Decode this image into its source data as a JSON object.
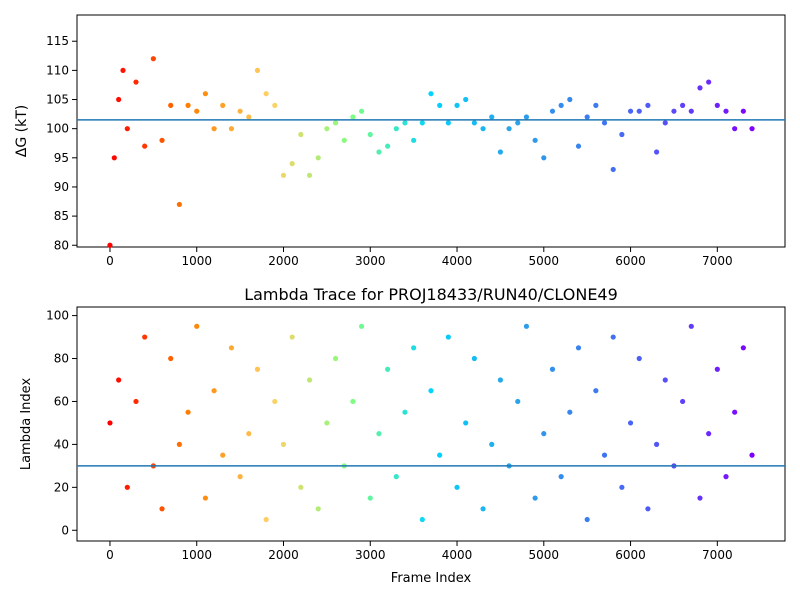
{
  "chart_data": [
    {
      "type": "scatter",
      "title": "",
      "xlabel": "",
      "ylabel": "ΔG (kT)",
      "xlim": [
        -380,
        7780
      ],
      "ylim": [
        79.7,
        119.5
      ],
      "x_ticks": [
        0,
        1000,
        2000,
        3000,
        4000,
        5000,
        6000,
        7000
      ],
      "y_ticks": [
        80,
        85,
        90,
        95,
        100,
        105,
        110,
        115
      ],
      "x_tick_labels": [
        "0",
        "1000",
        "2000",
        "3000",
        "4000",
        "5000",
        "6000",
        "7000"
      ],
      "y_tick_labels": [
        "80",
        "85",
        "90",
        "95",
        "100",
        "105",
        "110",
        "115"
      ],
      "hline": 101.5,
      "colormap": "rainbow",
      "color_note": "point color varies along frame index (red early, violet late)",
      "series": [
        {
          "x": [
            0,
            50,
            100,
            150,
            200,
            300,
            400,
            500,
            600,
            700,
            800,
            900,
            1000,
            1100,
            1200,
            1300,
            1400,
            1500,
            1600,
            1700,
            1800,
            1900,
            2000,
            2100,
            2200,
            2300,
            2400,
            2500,
            2600,
            2700,
            2800,
            2900,
            3000,
            3100,
            3200,
            3300,
            3400,
            3500,
            3600,
            3700,
            3800,
            3900,
            4000,
            4100,
            4200,
            4300,
            4400,
            4500,
            4600,
            4700,
            4800,
            4900,
            5000,
            5100,
            5200,
            5300,
            5400,
            5500,
            5600,
            5700,
            5800,
            5900,
            6000,
            6100,
            6200,
            6300,
            6400,
            6500,
            6600,
            6700,
            6800,
            6900,
            7000,
            7100,
            7200,
            7300,
            7400
          ],
          "y": [
            80,
            95,
            105,
            110,
            100,
            108,
            97,
            112,
            98,
            104,
            87,
            104,
            103,
            106,
            100,
            104,
            100,
            103,
            102,
            110,
            106,
            104,
            92,
            94,
            99,
            92,
            95,
            100,
            101,
            98,
            102,
            103,
            99,
            96,
            97,
            100,
            101,
            98,
            101,
            106,
            104,
            101,
            104,
            105,
            101,
            100,
            102,
            96,
            100,
            101,
            102,
            98,
            95,
            103,
            104,
            105,
            97,
            102,
            104,
            101,
            93,
            99,
            103,
            103,
            104,
            96,
            101,
            103,
            104,
            103,
            107,
            108,
            104,
            103,
            100,
            103,
            100
          ]
        }
      ]
    },
    {
      "type": "scatter",
      "title": "Lambda Trace for PROJ18433/RUN40/CLONE49",
      "xlabel": "Frame Index",
      "ylabel": "Lambda Index",
      "xlim": [
        -380,
        7780
      ],
      "ylim": [
        -5,
        104
      ],
      "x_ticks": [
        0,
        1000,
        2000,
        3000,
        4000,
        5000,
        6000,
        7000
      ],
      "y_ticks": [
        0,
        20,
        40,
        60,
        80,
        100
      ],
      "x_tick_labels": [
        "0",
        "1000",
        "2000",
        "3000",
        "4000",
        "5000",
        "6000",
        "7000"
      ],
      "y_tick_labels": [
        "0",
        "20",
        "40",
        "60",
        "80",
        "100"
      ],
      "hline": 30,
      "colormap": "rainbow",
      "color_note": "point color varies along frame index (red early, violet late)",
      "series": [
        {
          "x": [
            0,
            100,
            200,
            300,
            400,
            500,
            600,
            700,
            800,
            900,
            1000,
            1100,
            1200,
            1300,
            1400,
            1500,
            1600,
            1700,
            1800,
            1900,
            2000,
            2100,
            2200,
            2300,
            2400,
            2500,
            2600,
            2700,
            2800,
            2900,
            3000,
            3100,
            3200,
            3300,
            3400,
            3500,
            3600,
            3700,
            3800,
            3900,
            4000,
            4100,
            4200,
            4300,
            4400,
            4500,
            4600,
            4700,
            4800,
            4900,
            5000,
            5100,
            5200,
            5300,
            5400,
            5500,
            5600,
            5700,
            5800,
            5900,
            6000,
            6100,
            6200,
            6300,
            6400,
            6500,
            6600,
            6700,
            6800,
            6900,
            7000,
            7100,
            7200,
            7300,
            7400
          ],
          "y": [
            50,
            70,
            20,
            60,
            90,
            30,
            10,
            80,
            40,
            55,
            95,
            15,
            65,
            35,
            85,
            25,
            45,
            75,
            5,
            60,
            40,
            90,
            20,
            70,
            10,
            50,
            80,
            30,
            60,
            95,
            15,
            45,
            75,
            25,
            55,
            85,
            5,
            65,
            35,
            90,
            20,
            50,
            80,
            10,
            40,
            70,
            30,
            60,
            95,
            15,
            45,
            75,
            25,
            55,
            85,
            5,
            65,
            35,
            90,
            20,
            50,
            80,
            10,
            40,
            70,
            30,
            60,
            95,
            15,
            45,
            75,
            25,
            55,
            85,
            35
          ]
        }
      ]
    }
  ],
  "colors": {
    "hline": "#1f77b4",
    "axis": "#000000",
    "rainbow": [
      "#ff0000",
      "#ff8000",
      "#ffd166",
      "#80ff80",
      "#00d4ff",
      "#2aa5e8",
      "#3a7df2",
      "#5a4cf7",
      "#7f00ff"
    ]
  }
}
